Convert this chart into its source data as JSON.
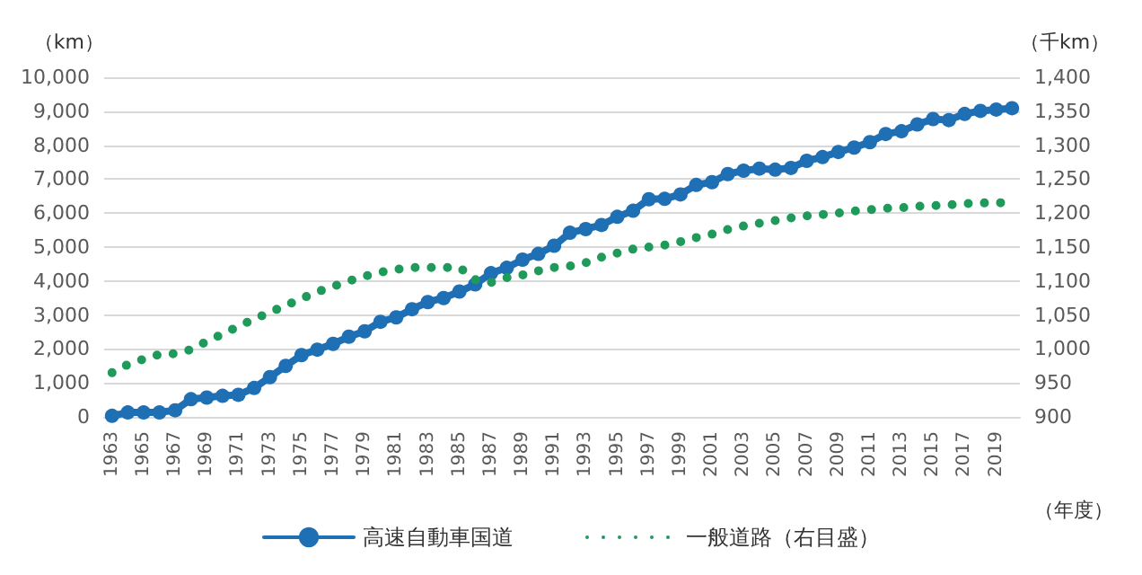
{
  "chart_data": {
    "type": "line",
    "ylabel": "（km）",
    "y2label": "（千km）",
    "xlabel": "（年度）",
    "categories": [
      "1963",
      null,
      "1965",
      null,
      "1967",
      null,
      "1969",
      null,
      "1971",
      null,
      "1973",
      null,
      "1975",
      null,
      "1977",
      null,
      "1979",
      null,
      "1981",
      null,
      "1983",
      null,
      "1985",
      null,
      "1987",
      null,
      "1989",
      null,
      "1991",
      null,
      "1993",
      null,
      "1995",
      null,
      "1997",
      null,
      "1999",
      null,
      "2001",
      null,
      "2003",
      null,
      "2005",
      null,
      "2007",
      null,
      "2009",
      null,
      "2011",
      null,
      "2013",
      null,
      "2015",
      null,
      "2017",
      null,
      "2019",
      null
    ],
    "series": [
      {
        "name": "高速自動車国道",
        "color": "#1f6fb5",
        "marker": "circle",
        "line_style": "solid",
        "values": [
          30,
          130,
          130,
          130,
          195,
          520,
          570,
          620,
          650,
          850,
          1170,
          1500,
          1820,
          1980,
          2150,
          2360,
          2520,
          2800,
          2930,
          3170,
          3380,
          3500,
          3690,
          3900,
          4230,
          4390,
          4630,
          4800,
          5040,
          5420,
          5530,
          5650,
          5890,
          6070,
          6410,
          6420,
          6550,
          6830,
          6910,
          7150,
          7250,
          7310,
          7280,
          7330,
          7540,
          7650,
          7800,
          7930,
          8090,
          8330,
          8410,
          8610,
          8770,
          8740,
          8920,
          9010,
          9050,
          9090
        ]
      },
      {
        "name": "一般道路（右目盛）",
        "color": "#1f9a5a",
        "marker": "none",
        "line_style": "dotted",
        "axis": "y2",
        "values": [
          965,
          977,
          985,
          992,
          993,
          999,
          1011,
          1022,
          1033,
          1044,
          1054,
          1064,
          1074,
          1084,
          1092,
          1100,
          1107,
          1113,
          1117,
          1120,
          1120,
          1120,
          1120,
          1102,
          1098,
          1105,
          1109,
          1115,
          1120,
          1122,
          1127,
          1135,
          1141,
          1147,
          1150,
          1153,
          1158,
          1164,
          1169,
          1176,
          1181,
          1185,
          1189,
          1193,
          1196,
          1198,
          1200,
          1203,
          1205,
          1207,
          1208,
          1210,
          1211,
          1212,
          1214,
          1215,
          1215,
          1216
        ]
      }
    ],
    "ylim": [
      0,
      10000
    ],
    "yticks": [
      0,
      {
        "value": 1000,
        "label": "1,000"
      },
      {
        "value": 2000,
        "label": "2,000"
      },
      {
        "value": 3000,
        "label": "3,000"
      },
      {
        "value": 4000,
        "label": "4,000"
      },
      {
        "value": 5000,
        "label": "5,000"
      },
      {
        "value": 6000,
        "label": "6,000"
      },
      {
        "value": 7000,
        "label": "7,000"
      },
      {
        "value": 8000,
        "label": "8,000"
      },
      {
        "value": 9000,
        "label": "9,000"
      },
      {
        "value": 10000,
        "label": "10,000"
      }
    ],
    "y2lim": [
      900,
      1400
    ],
    "y2ticks": [
      900,
      950,
      {
        "value": 1000,
        "label": "1,000"
      },
      {
        "value": 1050,
        "label": "1,050"
      },
      {
        "value": 1100,
        "label": "1,100"
      },
      {
        "value": 1150,
        "label": "1,150"
      },
      {
        "value": 1200,
        "label": "1,200"
      },
      {
        "value": 1250,
        "label": "1,250"
      },
      {
        "value": 1300,
        "label": "1,300"
      },
      {
        "value": 1350,
        "label": "1,350"
      },
      {
        "value": 1400,
        "label": "1,400"
      }
    ],
    "grid": "y",
    "legend": "bottom"
  }
}
